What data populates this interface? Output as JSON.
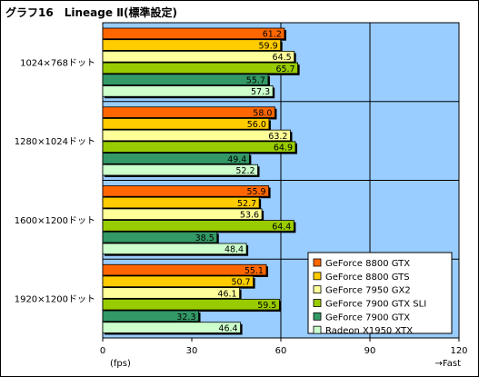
{
  "chart_data": {
    "type": "bar",
    "orientation": "horizontal",
    "title": "グラフ16　Lineage Ⅱ(標準設定)",
    "categories": [
      "1024×768ドット",
      "1280×1024ドット",
      "1600×1200ドット",
      "1920×1200ドット"
    ],
    "series": [
      {
        "name": "GeForce 8800 GTX",
        "color": "#ff6600",
        "values": [
          61.2,
          58.0,
          55.9,
          55.1
        ]
      },
      {
        "name": "GeForce 8800 GTS",
        "color": "#ffcc00",
        "values": [
          59.9,
          56.0,
          52.7,
          50.7
        ]
      },
      {
        "name": "GeForce 7950 GX2",
        "color": "#ffff99",
        "values": [
          64.5,
          63.2,
          53.6,
          46.1
        ]
      },
      {
        "name": "GeForce 7900 GTX SLI",
        "color": "#99cc00",
        "values": [
          65.7,
          64.9,
          64.4,
          59.5
        ]
      },
      {
        "name": "GeForce 7900 GTX",
        "color": "#339966",
        "values": [
          55.7,
          49.4,
          38.5,
          32.3
        ]
      },
      {
        "name": "Radeon X1950 XTX",
        "color": "#ccffcc",
        "values": [
          57.3,
          52.2,
          48.4,
          46.4
        ]
      }
    ],
    "value_labels": [
      [
        "61.2",
        "58.0",
        "55.9",
        "55.1"
      ],
      [
        "59.9",
        "56.0",
        "52.7",
        "50.7"
      ],
      [
        "64.5",
        "63.2",
        "53.6",
        "46.1"
      ],
      [
        "65.7",
        "64.9",
        "64.4",
        "59.5"
      ],
      [
        "55.7",
        "49.4",
        "38.5",
        "32.3"
      ],
      [
        "57.3",
        "52.2",
        "48.4",
        "46.4"
      ]
    ],
    "xlim": [
      0,
      120
    ],
    "ticks": [
      0,
      30,
      60,
      90,
      120
    ],
    "tick_labels": [
      "0",
      "30",
      "60",
      "90",
      "120"
    ],
    "xlabel": "(fps)",
    "direction_label": "→Fast",
    "gridlines": [
      60,
      90
    ],
    "plot_background": "#99ccff",
    "legend_position": "bottom-right"
  }
}
